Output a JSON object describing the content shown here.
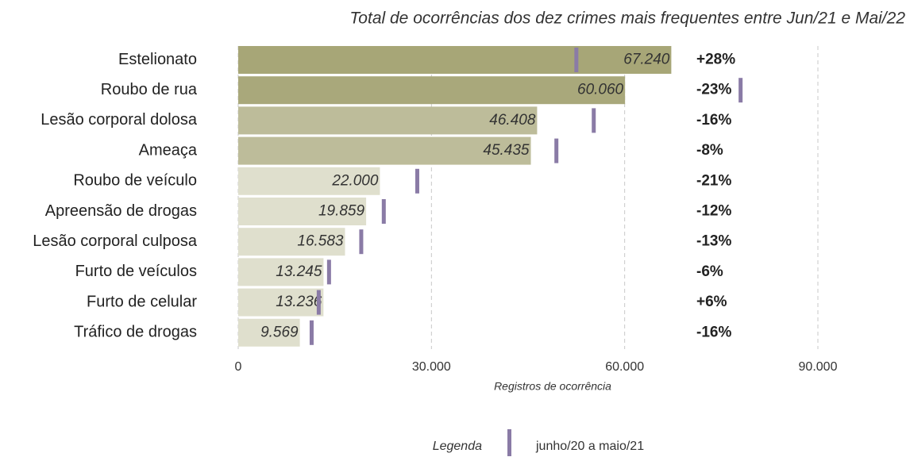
{
  "chart_data": {
    "type": "bar",
    "orientation": "horizontal",
    "title": "Total de ocorrências dos dez crimes mais frequentes entre Jun/21 e Mai/22",
    "x_label": "Registros de ocorrência",
    "categories": [
      "Estelionato",
      "Roubo de rua",
      "Lesão corporal dolosa",
      "Ameaça",
      "Roubo de veículo",
      "Apreensão de drogas",
      "Lesão corporal culposa",
      "Furto de veículos",
      "Furto de celular",
      "Tráfico de drogas"
    ],
    "values": [
      67240,
      60060,
      46408,
      45435,
      22000,
      19859,
      16583,
      13245,
      13236,
      9569
    ],
    "value_labels": [
      "67.240",
      "60.060",
      "46.408",
      "45.435",
      "22.000",
      "19.859",
      "16.583",
      "13.245",
      "13.236",
      "9.569"
    ],
    "colors": [
      "#a7a677",
      "#a9a87b",
      "#bdbc9a",
      "#bdbc9a",
      "#dfdfcd",
      "#dfdfcd",
      "#dfdfcd",
      "#dfdfcd",
      "#dfdfcd",
      "#dfdfcd"
    ],
    "previous": {
      "name": "junho/20 a maio/21",
      "color": "#8a7ba6",
      "values": [
        52500,
        78000,
        55200,
        49400,
        27800,
        22600,
        19100,
        14100,
        12500,
        11400
      ]
    },
    "change": {
      "values": [
        28,
        -23,
        -16,
        -8,
        -21,
        -12,
        -13,
        -6,
        6,
        -16
      ],
      "value_labels": [
        "+28%",
        "-23%",
        "-16%",
        "-8%",
        "-21%",
        "-12%",
        "-13%",
        "-6%",
        "+6%",
        "-16%"
      ],
      "positive_color": "#b5441c",
      "negative_color": "#2c3a55"
    },
    "legend_title": "Legenda",
    "xlim": [
      0,
      90000
    ],
    "xticks": [
      0,
      {
        "value": 30000,
        "label": "30.000"
      },
      {
        "value": 60000,
        "label": "60.000"
      },
      {
        "value": 90000,
        "label": "90.000"
      }
    ],
    "grid": true
  }
}
